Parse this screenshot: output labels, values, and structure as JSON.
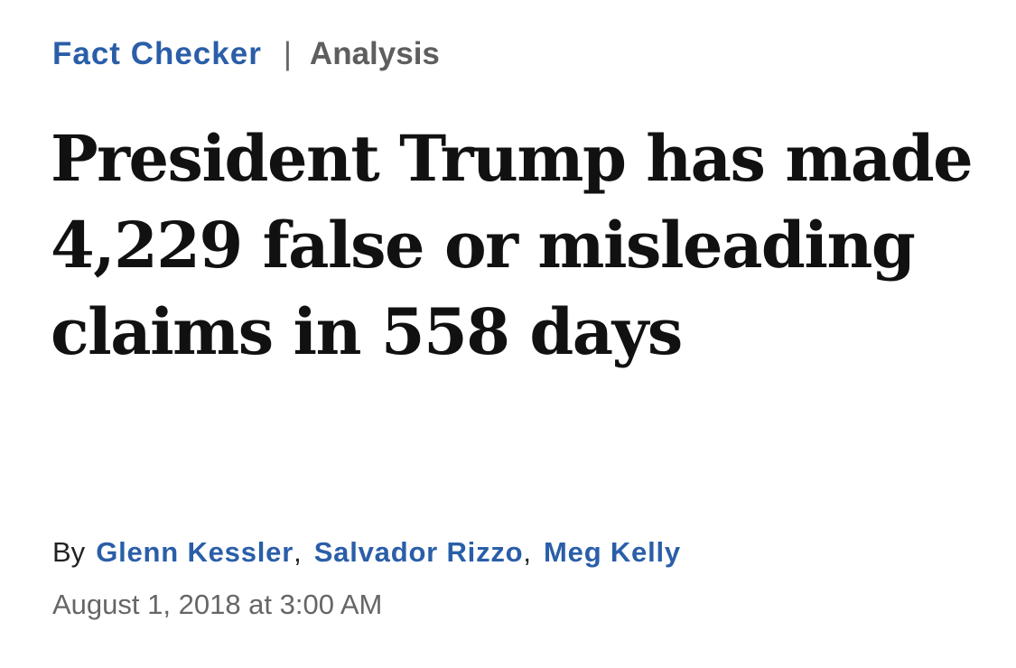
{
  "kicker": {
    "section": "Fact Checker",
    "separator": "|",
    "label": "Analysis"
  },
  "headline": "President Trump has made 4,229 false or misleading claims in 558 days",
  "byline": {
    "prefix": "By",
    "authors": [
      "Glenn Kessler",
      "Salvador Rizzo",
      "Meg Kelly"
    ],
    "separator": ","
  },
  "dateline": "August 1, 2018 at 3:00 AM",
  "colors": {
    "accent": "#2a5ea8",
    "headline": "#111111",
    "muted": "#666666"
  }
}
